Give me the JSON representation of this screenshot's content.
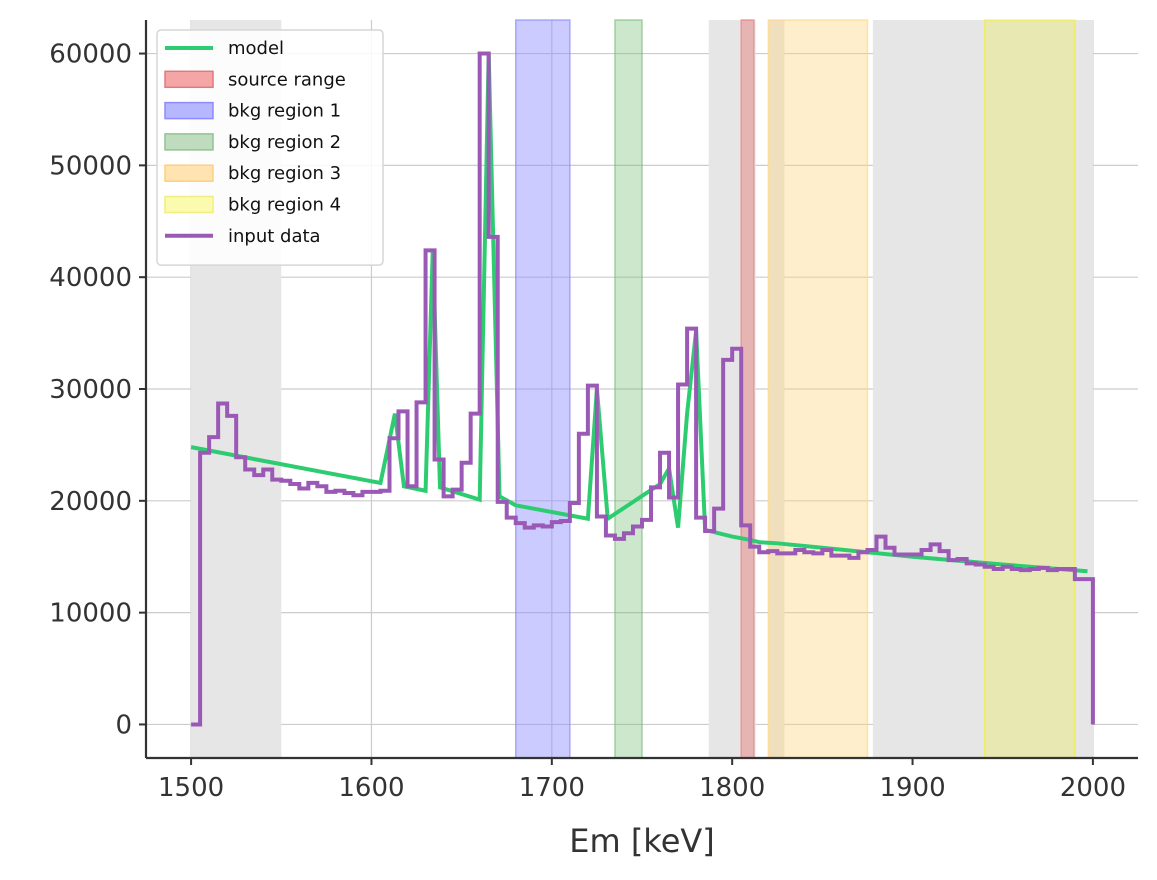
{
  "chart_data": {
    "type": "line",
    "title": "",
    "xlabel": "Em [keV]",
    "ylabel": "",
    "xlim": [
      1475,
      2025
    ],
    "ylim": [
      -3000,
      63000
    ],
    "xticks": [
      1500,
      1600,
      1700,
      1800,
      1900,
      2000
    ],
    "yticks": [
      0,
      10000,
      20000,
      30000,
      40000,
      50000,
      60000
    ],
    "grid": true,
    "legend_position": "top-left",
    "shaded_regions": [
      {
        "name": "",
        "x": [
          1500,
          1550
        ],
        "color": "#e6e6e6",
        "opacity": 1.0
      },
      {
        "name": "",
        "x": [
          1787,
          1813
        ],
        "color": "#e6e6e6",
        "opacity": 1.0
      },
      {
        "name": "",
        "x": [
          1820,
          1829
        ],
        "color": "#e6e6e6",
        "opacity": 1.0
      },
      {
        "name": "",
        "x": [
          1878,
          2000
        ],
        "color": "#e6e6e6",
        "opacity": 1.0
      },
      {
        "name": "bkg region 1",
        "x": [
          1680,
          1710
        ],
        "color": "#8c8cff",
        "opacity": 0.45
      },
      {
        "name": "bkg region 2",
        "x": [
          1735,
          1750
        ],
        "color": "#6fba6f",
        "opacity": 0.35
      },
      {
        "name": "bkg region 3",
        "x": [
          1820,
          1875
        ],
        "color": "#ffd580",
        "opacity": 0.4
      },
      {
        "name": "bkg region 4",
        "x": [
          1940,
          1990
        ],
        "color": "#f2f000",
        "opacity": 0.22
      },
      {
        "name": "source range",
        "x": [
          1805,
          1812
        ],
        "color": "#e88a8a",
        "opacity": 0.55
      }
    ],
    "series": [
      {
        "name": "model",
        "style": "line",
        "color": "#2ecc71",
        "x": [
          1500,
          1605,
          1613,
          1618,
          1630,
          1634,
          1638,
          1660,
          1665,
          1671,
          1680,
          1720,
          1725,
          1731,
          1760,
          1765,
          1770,
          1775,
          1780,
          1785,
          1800,
          1810,
          1815,
          1825,
          1850,
          1900,
          1950,
          1997
        ],
        "y": [
          24800,
          21600,
          27800,
          21300,
          20900,
          42500,
          21200,
          20100,
          60000,
          20400,
          19600,
          18400,
          30000,
          18400,
          21500,
          22900,
          17600,
          27800,
          35200,
          17400,
          16800,
          16500,
          16300,
          16200,
          15800,
          15000,
          14300,
          13700
        ]
      },
      {
        "name": "input data",
        "style": "step",
        "color": "#9b59b6",
        "x": [
          1500,
          1505,
          1510,
          1515,
          1520,
          1525,
          1530,
          1535,
          1540,
          1545,
          1550,
          1555,
          1560,
          1565,
          1570,
          1575,
          1580,
          1585,
          1590,
          1595,
          1600,
          1605,
          1610,
          1615,
          1620,
          1625,
          1630,
          1635,
          1640,
          1645,
          1650,
          1655,
          1660,
          1665,
          1670,
          1675,
          1680,
          1685,
          1690,
          1695,
          1700,
          1705,
          1710,
          1715,
          1720,
          1725,
          1730,
          1735,
          1740,
          1745,
          1750,
          1755,
          1760,
          1765,
          1770,
          1775,
          1780,
          1785,
          1790,
          1795,
          1800,
          1805,
          1810,
          1815,
          1820,
          1825,
          1830,
          1835,
          1840,
          1845,
          1850,
          1855,
          1860,
          1865,
          1870,
          1875,
          1880,
          1885,
          1890,
          1895,
          1900,
          1905,
          1910,
          1915,
          1920,
          1925,
          1930,
          1935,
          1940,
          1945,
          1950,
          1955,
          1960,
          1965,
          1970,
          1975,
          1980,
          1985,
          1990,
          1995,
          2000
        ],
        "y": [
          0,
          24300,
          25700,
          28700,
          27600,
          23900,
          22800,
          22300,
          22800,
          21900,
          21800,
          21500,
          21100,
          21600,
          21300,
          20800,
          20900,
          20700,
          20500,
          20800,
          20800,
          20900,
          25600,
          28000,
          21300,
          28800,
          42400,
          23700,
          20400,
          21000,
          23400,
          27800,
          60000,
          43600,
          19900,
          18500,
          18000,
          17600,
          17800,
          17700,
          18100,
          18200,
          19800,
          26000,
          30300,
          18600,
          16900,
          16600,
          17100,
          17700,
          18300,
          21200,
          24300,
          20300,
          30400,
          35400,
          18500,
          17300,
          19300,
          32600,
          33600,
          17800,
          15900,
          15400,
          15500,
          15300,
          15300,
          15600,
          15400,
          15300,
          15600,
          15100,
          15100,
          14900,
          15400,
          15600,
          16800,
          15800,
          15200,
          15200,
          15200,
          15600,
          16100,
          15500,
          14700,
          14800,
          14400,
          14300,
          14100,
          13900,
          14100,
          13900,
          13800,
          13900,
          14000,
          13800,
          13900,
          13900,
          13000,
          13000,
          0
        ]
      }
    ],
    "legend": [
      {
        "label": "model",
        "kind": "line",
        "color": "#2ecc71"
      },
      {
        "label": "source range",
        "kind": "patch",
        "color": "#f4a6a6",
        "edge": "#e07a7a"
      },
      {
        "label": "bkg region 1",
        "kind": "patch",
        "color": "#b7b7ff",
        "edge": "#8c8cff"
      },
      {
        "label": "bkg region 2",
        "kind": "patch",
        "color": "#bfdcbf",
        "edge": "#8fc48f"
      },
      {
        "label": "bkg region 3",
        "kind": "patch",
        "color": "#ffe3b0",
        "edge": "#ffcf80"
      },
      {
        "label": "bkg region 4",
        "kind": "patch",
        "color": "#fbfbb0",
        "edge": "#f0ee80"
      },
      {
        "label": "input data",
        "kind": "line",
        "color": "#9b59b6"
      }
    ]
  }
}
